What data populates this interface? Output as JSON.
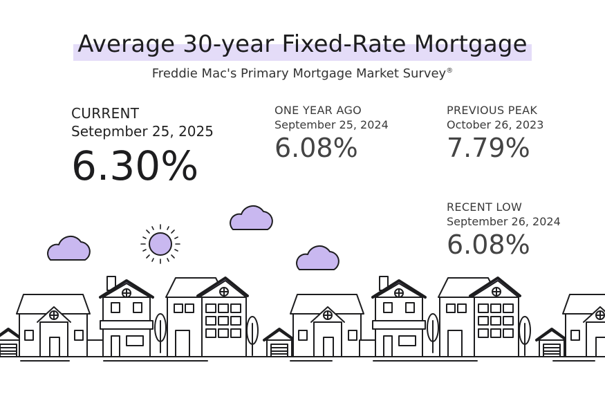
{
  "title": "Average 30-year Fixed-Rate Mortgage",
  "subtitle": "Freddie Mac's Primary Mortgage Market Survey",
  "subtitle_mark": "®",
  "colors": {
    "accent": "#c9b8f0",
    "highlight": "#e4dcf8",
    "line": "#1d1d1f"
  },
  "current": {
    "label": "CURRENT",
    "date": "Setepmber 25, 2025",
    "value": "6.30%"
  },
  "one_year_ago": {
    "label": "ONE YEAR AGO",
    "date": "September 25, 2024",
    "value": "6.08%"
  },
  "previous_peak": {
    "label": "PREVIOUS PEAK",
    "date": "October 26, 2023",
    "value": "7.79%"
  },
  "recent_low": {
    "label": "RECENT LOW",
    "date": "September 26, 2024",
    "value": "6.08%"
  },
  "illustration": {
    "icons": [
      "sun-icon",
      "cloud-icon",
      "house-icon",
      "tree-icon",
      "garage-icon"
    ]
  }
}
